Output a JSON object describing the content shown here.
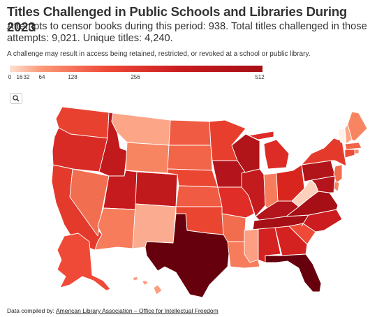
{
  "title": "Titles Challenged in Public Schools and Libraries During 2023",
  "subtitle": "Attempts to censor books during this period: 938. Total titles challenged in those attempts: 9,021. Unique titles: 4,240.",
  "note": "A challenge may result in access being retained, restricted, or revoked at a school or public library.",
  "legend": {
    "min": 0,
    "max": 512,
    "ticks": [
      "0",
      "16",
      "32",
      "64",
      "128",
      "256",
      "512"
    ],
    "tick_values": [
      0,
      16,
      32,
      64,
      128,
      256,
      512
    ],
    "colors": [
      "#fde0d2",
      "#fc9b7b",
      "#ef4a37",
      "#c81b1e",
      "#a50f15"
    ]
  },
  "search_icon": "search-icon",
  "credit": {
    "label": "Data compiled by:",
    "source": "American Library Association – Office for Intellectual Freedom"
  },
  "state_colors": {
    "WA": "#e8412f",
    "OR": "#d82b25",
    "CA": "#e43a2c",
    "ID": "#c11a1d",
    "NV": "#f26e50",
    "MT": "#fca587",
    "WY": "#f88562",
    "UT": "#c61b1e",
    "AZ": "#f67c5c",
    "NM": "#fbab8f",
    "CO": "#c11a1d",
    "ND": "#f05b43",
    "SD": "#f26549",
    "NE": "#ea4631",
    "KS": "#f05b43",
    "OK": "#e94530",
    "TX": "#67000d",
    "MN": "#e73e2e",
    "IA": "#b4141b",
    "MO": "#e02d27",
    "AR": "#f26c4e",
    "LA": "#f67c5c",
    "WI": "#b11419",
    "IL": "#c41b1e",
    "MI": "#dd2b25",
    "IN": "#f67c5c",
    "OH": "#d8261f",
    "KY": "#b4141b",
    "TN": "#a50f15",
    "MS": "#fc9f82",
    "AL": "#d42220",
    "GA": "#d42220",
    "FL": "#67000d",
    "SC": "#ef4a37",
    "NC": "#cc1c1f",
    "VA": "#a50f15",
    "WV": "#fdd0bc",
    "PA": "#b11419",
    "NY": "#e43a2c",
    "VT": "#fff0e8",
    "NH": "#fca587",
    "ME": "#f88562",
    "MA": "#f26549",
    "RI": "#f88562",
    "CT": "#ef4a37",
    "NJ": "#f26c4e",
    "DE": "#f88562",
    "MD": "#b4141b",
    "AK": "#ef4a37",
    "HI": "#fb9d7f"
  }
}
